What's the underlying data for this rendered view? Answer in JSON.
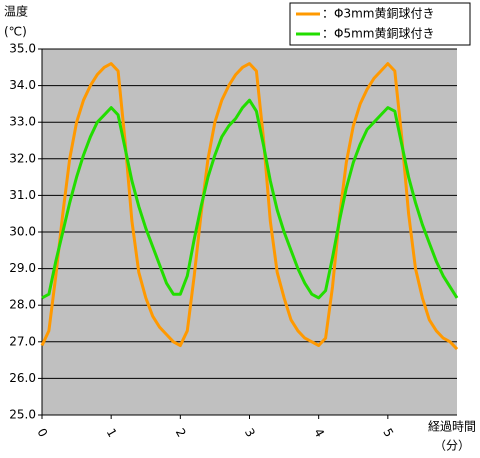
{
  "chart_data": {
    "type": "line",
    "ylabel": "温度",
    "ylabel_unit": "(℃)",
    "xlabel": "経過時間",
    "xlabel_unit": "（分）",
    "xlim": [
      0,
      6
    ],
    "xticks": [
      0,
      1,
      2,
      3,
      4,
      5
    ],
    "ylim": [
      25,
      35
    ],
    "yticks": [
      {
        "value": 25,
        "label": "25.0"
      },
      {
        "value": 26,
        "label": "26.0"
      },
      {
        "value": 27,
        "label": "27.0"
      },
      {
        "value": 28,
        "label": "28.0"
      },
      {
        "value": 29,
        "label": "29.0"
      },
      {
        "value": 30,
        "label": "30.0"
      },
      {
        "value": 31,
        "label": "31.0"
      },
      {
        "value": 32,
        "label": "32.0"
      },
      {
        "value": 33,
        "label": "33.0"
      },
      {
        "value": 34,
        "label": "34.0"
      },
      {
        "value": 35,
        "label": "35.0"
      }
    ],
    "grid": true,
    "background": "#c0c0c0",
    "legend": "top-right",
    "x": [
      0,
      0.1,
      0.2,
      0.3,
      0.4,
      0.5,
      0.6,
      0.7,
      0.8,
      0.9,
      1,
      1.1,
      1.2,
      1.3,
      1.4,
      1.5,
      1.6,
      1.7,
      1.8,
      1.9,
      2,
      2.1,
      2.2,
      2.3,
      2.4,
      2.5,
      2.6,
      2.7,
      2.8,
      2.9,
      3,
      3.1,
      3.2,
      3.3,
      3.4,
      3.5,
      3.6,
      3.7,
      3.8,
      3.9,
      4,
      4.1,
      4.2,
      4.3,
      4.4,
      4.5,
      4.6,
      4.7,
      4.8,
      4.9,
      5,
      5.1,
      5.2,
      5.3,
      5.4,
      5.5,
      5.6,
      5.7,
      5.8,
      5.9,
      6
    ],
    "series": [
      {
        "name": "：Φ3mm黄銅球付き",
        "color": "#ff9900",
        "values": [
          26.9,
          27.3,
          28.8,
          30.5,
          32.0,
          33.0,
          33.6,
          34.0,
          34.3,
          34.5,
          34.6,
          34.4,
          32.5,
          30.3,
          28.9,
          28.2,
          27.7,
          27.4,
          27.2,
          27.0,
          26.9,
          27.3,
          28.8,
          30.5,
          32.0,
          33.0,
          33.6,
          34.0,
          34.3,
          34.5,
          34.6,
          34.4,
          32.6,
          30.3,
          28.9,
          28.2,
          27.6,
          27.3,
          27.1,
          27.0,
          26.9,
          27.1,
          28.5,
          30.4,
          31.9,
          32.9,
          33.5,
          33.9,
          34.2,
          34.4,
          34.6,
          34.4,
          32.6,
          30.5,
          29.0,
          28.2,
          27.6,
          27.3,
          27.1,
          27.0,
          26.8
        ]
      },
      {
        "name": "：Φ5mm黄銅球付き",
        "color": "#22dd00",
        "values": [
          28.2,
          28.3,
          29.2,
          30.0,
          30.8,
          31.5,
          32.1,
          32.6,
          33.0,
          33.2,
          33.4,
          33.2,
          32.3,
          31.4,
          30.7,
          30.1,
          29.6,
          29.1,
          28.6,
          28.3,
          28.3,
          28.8,
          29.8,
          30.7,
          31.5,
          32.1,
          32.6,
          32.9,
          33.1,
          33.4,
          33.6,
          33.3,
          32.4,
          31.4,
          30.6,
          30.0,
          29.5,
          29.0,
          28.6,
          28.3,
          28.2,
          28.4,
          29.3,
          30.3,
          31.2,
          31.9,
          32.4,
          32.8,
          33.0,
          33.2,
          33.4,
          33.3,
          32.4,
          31.5,
          30.8,
          30.2,
          29.7,
          29.2,
          28.8,
          28.5,
          28.2
        ]
      }
    ]
  }
}
